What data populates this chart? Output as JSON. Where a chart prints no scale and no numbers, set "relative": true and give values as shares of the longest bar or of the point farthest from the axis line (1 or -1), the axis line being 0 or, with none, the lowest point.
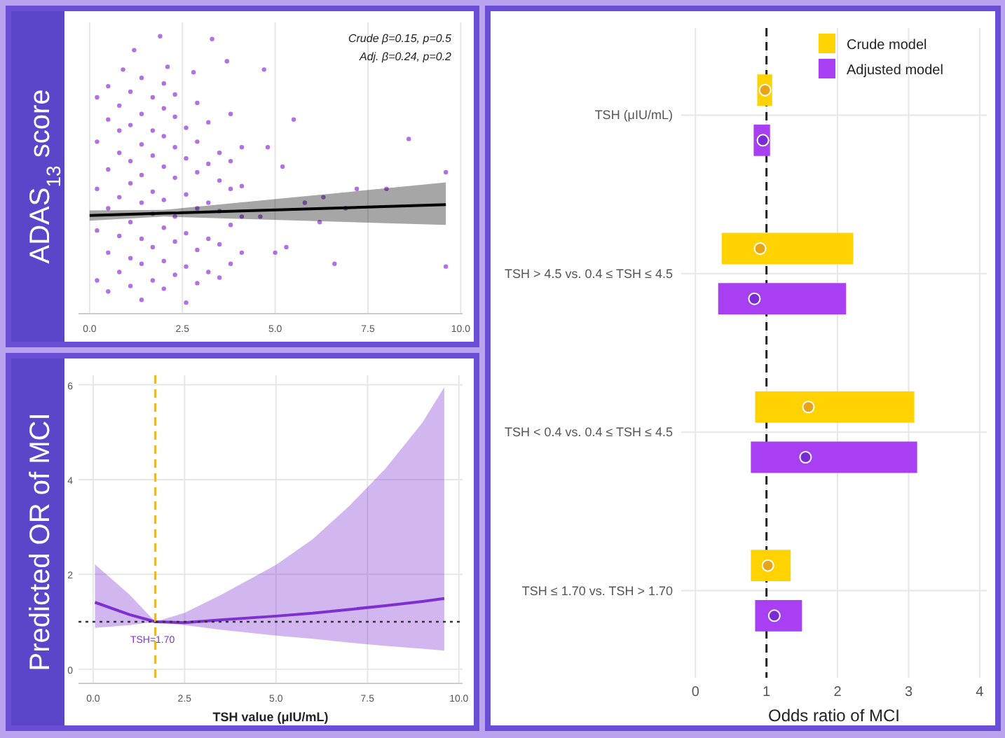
{
  "chart_data": [
    {
      "type": "scatter",
      "ylabel": "ADAS$_{13}$ score",
      "relative": true,
      "grid": "x",
      "xlim": [
        -0.3,
        10.05
      ],
      "xticks": [
        {
          "value": 0,
          "label": "0.0"
        },
        2.5,
        {
          "value": 5,
          "label": "5.0"
        },
        7.5,
        {
          "value": 10,
          "label": "10.0"
        }
      ],
      "annotations": [
        "Crude β=0.15, p=0.5",
        "Adj. β=0.24, p=0.2"
      ],
      "series": [
        {
          "color": "#9b4fd8",
          "marker": "circle",
          "x": [
            0.2,
            0.2,
            0.2,
            0.2,
            0.2,
            0.5,
            0.5,
            0.5,
            0.5,
            0.5,
            0.5,
            0.8,
            0.8,
            0.8,
            0.8,
            0.8,
            0.8,
            1.1,
            1.1,
            1.1,
            1.1,
            1.1,
            1.1,
            1.1,
            1.4,
            1.4,
            1.4,
            1.4,
            1.4,
            1.4,
            1.4,
            1.4,
            1.7,
            1.7,
            1.7,
            1.7,
            1.7,
            1.7,
            1.7,
            2.0,
            2.0,
            2.0,
            2.0,
            2.0,
            2.0,
            2.0,
            2.0,
            2.3,
            2.3,
            2.3,
            2.3,
            2.3,
            2.3,
            2.3,
            2.6,
            2.6,
            2.6,
            2.6,
            2.6,
            2.6,
            2.9,
            2.9,
            2.9,
            2.9,
            2.9,
            2.9,
            3.2,
            3.2,
            3.2,
            3.2,
            3.2,
            3.5,
            3.5,
            3.5,
            3.5,
            3.5,
            3.8,
            3.8,
            3.8,
            3.8,
            3.8,
            4.1,
            4.1,
            4.1,
            4.1,
            1.9,
            3.3,
            1.2,
            3.7,
            4.7,
            2.1,
            0.9,
            2.8,
            5.2,
            5.5,
            5.8,
            6.6,
            6.2,
            5.3,
            6.9,
            7.2,
            8.0,
            8.6,
            9.6,
            9.6,
            5.0,
            4.6,
            6.3,
            4.8
          ],
          "values": [
            0.12,
            0.3,
            0.45,
            0.62,
            0.78,
            0.08,
            0.22,
            0.38,
            0.52,
            0.7,
            0.82,
            0.15,
            0.28,
            0.42,
            0.58,
            0.66,
            0.75,
            0.1,
            0.2,
            0.33,
            0.47,
            0.55,
            0.68,
            0.8,
            0.05,
            0.18,
            0.27,
            0.4,
            0.5,
            0.61,
            0.72,
            0.85,
            0.12,
            0.24,
            0.36,
            0.44,
            0.57,
            0.66,
            0.78,
            0.09,
            0.19,
            0.31,
            0.41,
            0.53,
            0.64,
            0.74,
            0.83,
            0.14,
            0.26,
            0.35,
            0.49,
            0.6,
            0.71,
            0.79,
            0.04,
            0.17,
            0.29,
            0.43,
            0.56,
            0.67,
            0.11,
            0.23,
            0.38,
            0.51,
            0.62,
            0.76,
            0.15,
            0.27,
            0.4,
            0.54,
            0.69,
            0.13,
            0.25,
            0.37,
            0.48,
            0.58,
            0.18,
            0.32,
            0.45,
            0.55,
            0.72,
            0.22,
            0.35,
            0.46,
            0.6,
            1.0,
            0.99,
            0.95,
            0.91,
            0.88,
            0.89,
            0.88,
            0.87,
            0.53,
            0.7,
            0.4,
            0.18,
            0.33,
            0.24,
            0.38,
            0.45,
            0.45,
            0.63,
            0.51,
            0.17,
            0.22,
            0.35,
            0.42,
            0.6
          ]
        },
        {
          "type": "line",
          "color": "#000000",
          "x": [
            0,
            2,
            9.6
          ],
          "values": [
            0.354,
            0.362,
            0.393
          ],
          "lower": [
            0.335,
            0.35,
            0.32
          ],
          "upper": [
            0.372,
            0.374,
            0.473
          ]
        }
      ]
    },
    {
      "type": "line",
      "xlabel": "TSH value (μIU/mL)",
      "ylabel": "Predicted OR of MCI",
      "grid": true,
      "xlim": [
        -0.4,
        10.1
      ],
      "xticks": [
        {
          "value": 0,
          "label": "0.0"
        },
        2.5,
        {
          "value": 5,
          "label": "5.0"
        },
        7.5,
        {
          "value": 10,
          "label": "10.0"
        }
      ],
      "ylim": [
        -0.3,
        6.2
      ],
      "yticks": [
        0,
        2,
        4,
        6
      ],
      "ref_lines": [
        {
          "axis": "x",
          "value": 1.7,
          "label": "TSH=1.70",
          "color": "#f0b429",
          "line_style": "dashed"
        },
        {
          "axis": "y",
          "value": 1,
          "color": "#333333",
          "line_style": "dotted"
        }
      ],
      "series": [
        {
          "color": "#7d2fd0",
          "x": [
            0.05,
            1,
            1.7,
            2.5,
            3.5,
            5,
            6,
            7,
            8,
            9,
            9.6
          ],
          "values": [
            1.41,
            1.15,
            1.0,
            0.98,
            1.04,
            1.12,
            1.18,
            1.26,
            1.34,
            1.43,
            1.49
          ],
          "lower": [
            0.87,
            0.93,
            1.0,
            0.93,
            0.83,
            0.71,
            0.64,
            0.56,
            0.49,
            0.43,
            0.39
          ],
          "upper": [
            2.21,
            1.57,
            1.0,
            1.19,
            1.57,
            2.2,
            2.74,
            3.44,
            4.24,
            5.2,
            5.95
          ]
        }
      ]
    },
    {
      "type": "bar",
      "orientation": "horizontal",
      "xlabel": "Odds ratio of MCI",
      "grid": true,
      "legend": "top right",
      "xlim": [
        -0.2,
        4.1
      ],
      "xticks": [
        0,
        1,
        2,
        3,
        4
      ],
      "categories": [
        "TSH (μIU/mL)",
        "TSH > 4.5 vs. 0.4 ≤ TSH ≤ 4.5",
        "TSH < 0.4 vs. 0.4 ≤ TSH ≤ 4.5",
        "TSH ≤ 1.70 vs. TSH > 1.70"
      ],
      "ref_lines": [
        {
          "axis": "x",
          "value": 1,
          "color": "#222222",
          "line_style": "dashed"
        }
      ],
      "series": [
        {
          "name": "Crude model",
          "color": "#ffd200",
          "base": [
            0.87,
            0.37,
            0.84,
            0.78
          ],
          "values": [
            0.21,
            1.85,
            2.24,
            0.56
          ]
        },
        {
          "name": "Adjusted model",
          "color": "#a83ff2",
          "base": [
            0.82,
            0.32,
            0.78,
            0.84
          ],
          "values": [
            0.23,
            1.8,
            2.34,
            0.66
          ]
        },
        {
          "type": "scatter",
          "color": "#e8a317",
          "marker": "circle",
          "values": [
            0.98,
            0.91,
            1.59,
            1.02
          ]
        },
        {
          "type": "scatter",
          "color": "#7a2bd6",
          "marker": "circle",
          "values": [
            0.95,
            0.83,
            1.55,
            1.11
          ]
        }
      ]
    }
  ]
}
